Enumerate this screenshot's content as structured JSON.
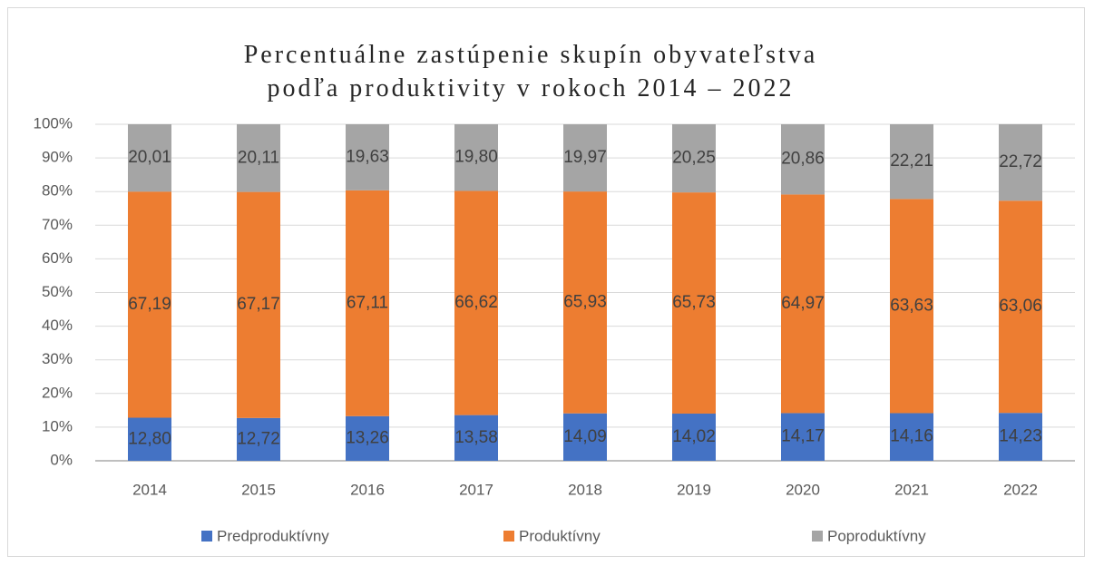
{
  "chart_data": {
    "type": "stacked_bar",
    "title": "Percentuálne zastúpenie skupín obyvateľstva podľa produktivity v rokoch 2014 – 2022",
    "categories": [
      "2014",
      "2015",
      "2016",
      "2017",
      "2018",
      "2019",
      "2020",
      "2021",
      "2022"
    ],
    "series": [
      {
        "name": "Predproduktívny",
        "color": "#4472c4",
        "values": [
          12.8,
          12.72,
          13.26,
          13.58,
          14.09,
          14.02,
          14.17,
          14.16,
          14.23
        ],
        "value_labels": [
          "12,80",
          "12,72",
          "13,26",
          "13,58",
          "14,09",
          "14,02",
          "14,17",
          "14,16",
          "14,23"
        ]
      },
      {
        "name": "Produktívny",
        "color": "#ed7d31",
        "values": [
          67.19,
          67.17,
          67.11,
          66.62,
          65.93,
          65.73,
          64.97,
          63.63,
          63.06
        ],
        "value_labels": [
          "67,19",
          "67,17",
          "67,11",
          "66,62",
          "65,93",
          "65,73",
          "64,97",
          "63,63",
          "63,06"
        ]
      },
      {
        "name": "Poproduktívny",
        "color": "#a5a5a5",
        "values": [
          20.01,
          20.11,
          19.63,
          19.8,
          19.97,
          20.25,
          20.86,
          22.21,
          22.72
        ],
        "value_labels": [
          "20,01",
          "20,11",
          "19,63",
          "19,80",
          "19,97",
          "20,25",
          "20,86",
          "22,21",
          "22,72"
        ]
      }
    ],
    "ylim": [
      0,
      100
    ],
    "yticks": [
      {
        "value": 0,
        "label": "0%"
      },
      {
        "value": 10,
        "label": "10%"
      },
      {
        "value": 20,
        "label": "20%"
      },
      {
        "value": 30,
        "label": "30%"
      },
      {
        "value": 40,
        "label": "40%"
      },
      {
        "value": 50,
        "label": "50%"
      },
      {
        "value": 60,
        "label": "60%"
      },
      {
        "value": 70,
        "label": "70%"
      },
      {
        "value": 80,
        "label": "80%"
      },
      {
        "value": 90,
        "label": "90%"
      },
      {
        "value": 100,
        "label": "100%"
      }
    ],
    "grid": true,
    "legend": "bottom"
  }
}
